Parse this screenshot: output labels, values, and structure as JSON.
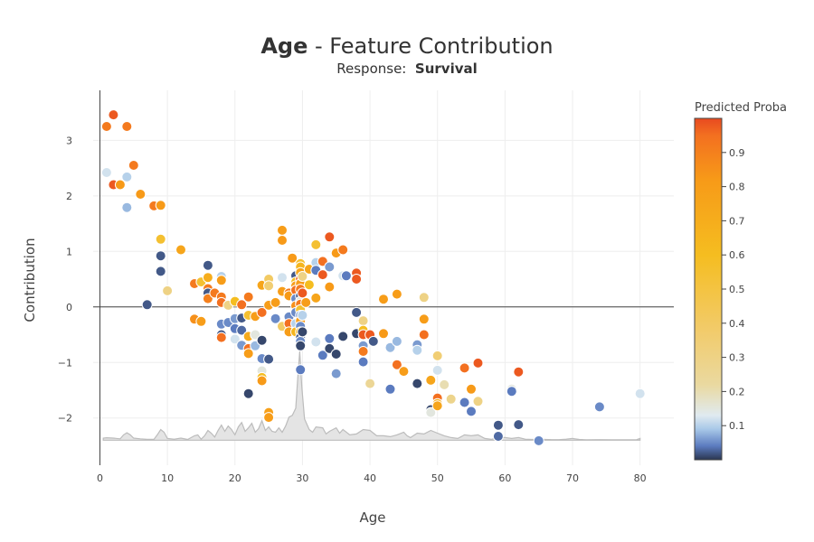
{
  "title": {
    "feature": "Age",
    "suffix": " - Feature Contribution"
  },
  "subtitle": {
    "label": "Response:",
    "value": "Survival"
  },
  "chart_data": {
    "type": "scatter",
    "xlabel": "Age",
    "ylabel": "Contribution",
    "xlim": [
      -1,
      85
    ],
    "ylim": [
      -2.85,
      3.9
    ],
    "xticks": [
      0,
      10,
      20,
      30,
      40,
      50,
      60,
      70,
      80
    ],
    "yticks": [
      -2,
      -1,
      0,
      1,
      2,
      3
    ],
    "xtick_labels": [
      "0",
      "10",
      "20",
      "30",
      "40",
      "50",
      "60",
      "70",
      "80"
    ],
    "ytick_labels": [
      "−2",
      "−1",
      "0",
      "1",
      "2",
      "3"
    ],
    "grid": true,
    "colorbar": {
      "title": "Predicted Proba",
      "range": [
        0,
        1
      ],
      "ticks": [
        0.1,
        0.2,
        0.3,
        0.4,
        0.5,
        0.6,
        0.7,
        0.8,
        0.9
      ],
      "tick_labels": [
        "0.1",
        "0.2",
        "0.3",
        "0.4",
        "0.5",
        "0.6",
        "0.7",
        "0.8",
        "0.9"
      ]
    },
    "points": [
      {
        "x": 1,
        "y": 3.25,
        "c": 0.92
      },
      {
        "x": 1,
        "y": 2.42,
        "c": 0.12
      },
      {
        "x": 2,
        "y": 3.46,
        "c": 0.98
      },
      {
        "x": 2,
        "y": 2.2,
        "c": 0.98
      },
      {
        "x": 3,
        "y": 2.2,
        "c": 0.82
      },
      {
        "x": 4,
        "y": 3.25,
        "c": 0.92
      },
      {
        "x": 4,
        "y": 2.34,
        "c": 0.1
      },
      {
        "x": 4,
        "y": 1.79,
        "c": 0.08
      },
      {
        "x": 5,
        "y": 2.55,
        "c": 0.92
      },
      {
        "x": 6,
        "y": 2.03,
        "c": 0.82
      },
      {
        "x": 8,
        "y": 1.82,
        "c": 0.92
      },
      {
        "x": 9,
        "y": 1.83,
        "c": 0.82
      },
      {
        "x": 9,
        "y": 1.22,
        "c": 0.55
      },
      {
        "x": 9,
        "y": 0.92,
        "c": 0.02
      },
      {
        "x": 9,
        "y": 0.64,
        "c": 0.02
      },
      {
        "x": 10,
        "y": 0.29,
        "c": 0.3
      },
      {
        "x": 7,
        "y": 0.04,
        "c": 0.02
      },
      {
        "x": 12,
        "y": 1.03,
        "c": 0.75
      },
      {
        "x": 14,
        "y": 0.42,
        "c": 0.92
      },
      {
        "x": 15,
        "y": 0.45,
        "c": 0.55
      },
      {
        "x": 16,
        "y": 0.53,
        "c": 0.7
      },
      {
        "x": 16,
        "y": 0.33,
        "c": 0.92
      },
      {
        "x": 16,
        "y": 0.25,
        "c": 0.02
      },
      {
        "x": 16,
        "y": 0.75,
        "c": 0.02
      },
      {
        "x": 16,
        "y": 0.15,
        "c": 0.9
      },
      {
        "x": 17,
        "y": 0.25,
        "c": 0.92
      },
      {
        "x": 18,
        "y": 0.55,
        "c": 0.1
      },
      {
        "x": 18,
        "y": 0.48,
        "c": 0.8
      },
      {
        "x": 18,
        "y": 0.18,
        "c": 0.92
      },
      {
        "x": 18,
        "y": 0.08,
        "c": 0.95
      },
      {
        "x": 14,
        "y": -0.22,
        "c": 0.85
      },
      {
        "x": 15,
        "y": -0.26,
        "c": 0.8
      },
      {
        "x": 18,
        "y": -0.31,
        "c": 0.05
      },
      {
        "x": 18,
        "y": -0.5,
        "c": 0.02
      },
      {
        "x": 18,
        "y": -0.55,
        "c": 0.95
      },
      {
        "x": 19,
        "y": 0.03,
        "c": 0.3
      },
      {
        "x": 19,
        "y": -0.28,
        "c": 0.05
      },
      {
        "x": 20,
        "y": 0.1,
        "c": 0.6
      },
      {
        "x": 20,
        "y": -0.21,
        "c": 0.06
      },
      {
        "x": 20,
        "y": -0.39,
        "c": 0.04
      },
      {
        "x": 20,
        "y": -0.58,
        "c": 0.12
      },
      {
        "x": 21,
        "y": 0.04,
        "c": 0.95
      },
      {
        "x": 21,
        "y": -0.2,
        "c": 0.02
      },
      {
        "x": 21,
        "y": -0.42,
        "c": 0.03
      },
      {
        "x": 21,
        "y": -0.69,
        "c": 0.06
      },
      {
        "x": 22,
        "y": 0.18,
        "c": 0.92
      },
      {
        "x": 22,
        "y": -0.15,
        "c": 0.55
      },
      {
        "x": 22,
        "y": -0.53,
        "c": 0.72
      },
      {
        "x": 22,
        "y": -0.75,
        "c": 0.95
      },
      {
        "x": 22,
        "y": -0.84,
        "c": 0.8
      },
      {
        "x": 22,
        "y": -1.56,
        "c": 0.01
      },
      {
        "x": 23,
        "y": -0.17,
        "c": 0.8
      },
      {
        "x": 23,
        "y": -0.5,
        "c": 0.15
      },
      {
        "x": 23,
        "y": -0.7,
        "c": 0.08
      },
      {
        "x": 24,
        "y": 0.39,
        "c": 0.75
      },
      {
        "x": 24,
        "y": -0.1,
        "c": 0.95
      },
      {
        "x": 24,
        "y": -0.6,
        "c": 0.01
      },
      {
        "x": 24,
        "y": -0.93,
        "c": 0.05
      },
      {
        "x": 24,
        "y": -1.15,
        "c": 0.15
      },
      {
        "x": 24,
        "y": -1.27,
        "c": 0.6
      },
      {
        "x": 24,
        "y": -1.33,
        "c": 0.82
      },
      {
        "x": 25,
        "y": 0.5,
        "c": 0.4
      },
      {
        "x": 25,
        "y": 0.38,
        "c": 0.35
      },
      {
        "x": 25,
        "y": 0.05,
        "c": 0.12
      },
      {
        "x": 25,
        "y": 0.03,
        "c": 0.8
      },
      {
        "x": 25,
        "y": -0.94,
        "c": 0.02
      },
      {
        "x": 25,
        "y": -1.9,
        "c": 0.78
      },
      {
        "x": 25,
        "y": -1.99,
        "c": 0.8
      },
      {
        "x": 26,
        "y": 0.08,
        "c": 0.8
      },
      {
        "x": 26,
        "y": -0.21,
        "c": 0.05
      },
      {
        "x": 27,
        "y": 1.38,
        "c": 0.8
      },
      {
        "x": 27,
        "y": 1.2,
        "c": 0.82
      },
      {
        "x": 27,
        "y": 0.53,
        "c": 0.12
      },
      {
        "x": 27,
        "y": 0.28,
        "c": 0.8
      },
      {
        "x": 27,
        "y": -0.35,
        "c": 0.4
      },
      {
        "x": 28,
        "y": 0.25,
        "c": 0.92
      },
      {
        "x": 28,
        "y": 0.2,
        "c": 0.82
      },
      {
        "x": 28,
        "y": -0.18,
        "c": 0.05
      },
      {
        "x": 28,
        "y": -0.3,
        "c": 0.95
      },
      {
        "x": 28,
        "y": -0.45,
        "c": 0.8
      },
      {
        "x": 28.5,
        "y": 0.88,
        "c": 0.82
      },
      {
        "x": 29,
        "y": 0.56,
        "c": 0.02
      },
      {
        "x": 29,
        "y": 0.45,
        "c": 0.6
      },
      {
        "x": 29,
        "y": 0.38,
        "c": 0.8
      },
      {
        "x": 29,
        "y": 0.3,
        "c": 0.95
      },
      {
        "x": 29,
        "y": 0.15,
        "c": 0.05
      },
      {
        "x": 29,
        "y": 0.02,
        "c": 0.85
      },
      {
        "x": 29,
        "y": -0.1,
        "c": 0.05
      },
      {
        "x": 29,
        "y": -0.3,
        "c": 0.1
      },
      {
        "x": 29,
        "y": -0.45,
        "c": 0.65
      },
      {
        "x": 29.7,
        "y": 0.78,
        "c": 0.55
      },
      {
        "x": 29.7,
        "y": 0.72,
        "c": 0.65
      },
      {
        "x": 29.7,
        "y": 0.62,
        "c": 0.75
      },
      {
        "x": 29.7,
        "y": 0.5,
        "c": 0.98
      },
      {
        "x": 29.7,
        "y": 0.42,
        "c": 0.8
      },
      {
        "x": 29.7,
        "y": 0.32,
        "c": 0.92
      },
      {
        "x": 29.7,
        "y": 0.2,
        "c": 0.02
      },
      {
        "x": 29.7,
        "y": 0.1,
        "c": 0.15
      },
      {
        "x": 29.7,
        "y": 0.05,
        "c": 0.92
      },
      {
        "x": 29.7,
        "y": -0.05,
        "c": 0.55
      },
      {
        "x": 29.7,
        "y": -0.15,
        "c": 0.06
      },
      {
        "x": 29.7,
        "y": -0.25,
        "c": 0.8
      },
      {
        "x": 29.7,
        "y": -0.35,
        "c": 0.05
      },
      {
        "x": 29.7,
        "y": -0.45,
        "c": 0.65
      },
      {
        "x": 29.7,
        "y": -0.55,
        "c": 0.02
      },
      {
        "x": 29.7,
        "y": -0.62,
        "c": 0.05
      },
      {
        "x": 29.7,
        "y": -0.7,
        "c": 0.01
      },
      {
        "x": 29.7,
        "y": -1.13,
        "c": 0.04
      },
      {
        "x": 30,
        "y": 0.55,
        "c": 0.3
      },
      {
        "x": 30,
        "y": 0.25,
        "c": 0.98
      },
      {
        "x": 30,
        "y": -0.15,
        "c": 0.1
      },
      {
        "x": 30,
        "y": -0.45,
        "c": 0.01
      },
      {
        "x": 30.5,
        "y": 0.08,
        "c": 0.8
      },
      {
        "x": 31,
        "y": 0.68,
        "c": 0.75
      },
      {
        "x": 31,
        "y": 0.4,
        "c": 0.6
      },
      {
        "x": 32,
        "y": 1.12,
        "c": 0.55
      },
      {
        "x": 32,
        "y": 0.8,
        "c": 0.1
      },
      {
        "x": 32,
        "y": 0.66,
        "c": 0.04
      },
      {
        "x": 32,
        "y": 0.16,
        "c": 0.75
      },
      {
        "x": 32,
        "y": -0.63,
        "c": 0.12
      },
      {
        "x": 33,
        "y": 0.82,
        "c": 0.95
      },
      {
        "x": 33,
        "y": 0.58,
        "c": 0.98
      },
      {
        "x": 33,
        "y": -0.87,
        "c": 0.04
      },
      {
        "x": 34,
        "y": 1.26,
        "c": 0.98
      },
      {
        "x": 34,
        "y": 0.72,
        "c": 0.06
      },
      {
        "x": 34,
        "y": 0.36,
        "c": 0.82
      },
      {
        "x": 34,
        "y": -0.57,
        "c": 0.04
      },
      {
        "x": 34,
        "y": -0.75,
        "c": 0.01
      },
      {
        "x": 35,
        "y": 0.97,
        "c": 0.82
      },
      {
        "x": 35,
        "y": -0.85,
        "c": 0.01
      },
      {
        "x": 35,
        "y": -1.2,
        "c": 0.06
      },
      {
        "x": 36,
        "y": 1.03,
        "c": 0.92
      },
      {
        "x": 36,
        "y": 0.56,
        "c": 0.12
      },
      {
        "x": 36,
        "y": -0.53,
        "c": 0.01
      },
      {
        "x": 36.5,
        "y": 0.56,
        "c": 0.04
      },
      {
        "x": 38,
        "y": 0.61,
        "c": 0.98
      },
      {
        "x": 38,
        "y": 0.5,
        "c": 0.98
      },
      {
        "x": 38,
        "y": -0.1,
        "c": 0.02
      },
      {
        "x": 38,
        "y": -0.48,
        "c": 0.01
      },
      {
        "x": 39,
        "y": -0.25,
        "c": 0.3
      },
      {
        "x": 39,
        "y": -0.42,
        "c": 0.6
      },
      {
        "x": 39,
        "y": -0.5,
        "c": 0.98
      },
      {
        "x": 39,
        "y": -0.7,
        "c": 0.06
      },
      {
        "x": 39,
        "y": -0.8,
        "c": 0.92
      },
      {
        "x": 39,
        "y": -0.99,
        "c": 0.04
      },
      {
        "x": 40,
        "y": -0.5,
        "c": 0.98
      },
      {
        "x": 40,
        "y": -1.38,
        "c": 0.25
      },
      {
        "x": 40.5,
        "y": -0.62,
        "c": 0.02
      },
      {
        "x": 42,
        "y": 0.14,
        "c": 0.8
      },
      {
        "x": 42,
        "y": -0.48,
        "c": 0.82
      },
      {
        "x": 43,
        "y": -0.73,
        "c": 0.08
      },
      {
        "x": 43,
        "y": -1.48,
        "c": 0.04
      },
      {
        "x": 44,
        "y": 0.23,
        "c": 0.8
      },
      {
        "x": 44,
        "y": -0.62,
        "c": 0.08
      },
      {
        "x": 44,
        "y": -1.04,
        "c": 0.95
      },
      {
        "x": 45,
        "y": -1.16,
        "c": 0.8
      },
      {
        "x": 47,
        "y": -0.68,
        "c": 0.06
      },
      {
        "x": 47,
        "y": -0.78,
        "c": 0.1
      },
      {
        "x": 47,
        "y": -1.38,
        "c": 0.01
      },
      {
        "x": 48,
        "y": 0.17,
        "c": 0.3
      },
      {
        "x": 48,
        "y": -0.22,
        "c": 0.8
      },
      {
        "x": 48,
        "y": -0.5,
        "c": 0.95
      },
      {
        "x": 49,
        "y": -1.32,
        "c": 0.75
      },
      {
        "x": 49,
        "y": -1.85,
        "c": 0.01
      },
      {
        "x": 49,
        "y": -1.9,
        "c": 0.15
      },
      {
        "x": 50,
        "y": -0.88,
        "c": 0.35
      },
      {
        "x": 50,
        "y": -1.14,
        "c": 0.12
      },
      {
        "x": 50,
        "y": -1.64,
        "c": 0.95
      },
      {
        "x": 50,
        "y": -1.74,
        "c": 0.7
      },
      {
        "x": 50,
        "y": -1.78,
        "c": 0.75
      },
      {
        "x": 51,
        "y": -1.4,
        "c": 0.2
      },
      {
        "x": 52,
        "y": -1.66,
        "c": 0.28
      },
      {
        "x": 54,
        "y": -1.1,
        "c": 0.95
      },
      {
        "x": 54,
        "y": -1.72,
        "c": 0.04
      },
      {
        "x": 55,
        "y": -1.48,
        "c": 0.82
      },
      {
        "x": 55,
        "y": -1.88,
        "c": 0.04
      },
      {
        "x": 56,
        "y": -1.01,
        "c": 0.98
      },
      {
        "x": 56,
        "y": -1.7,
        "c": 0.3
      },
      {
        "x": 59,
        "y": -2.13,
        "c": 0.02
      },
      {
        "x": 59,
        "y": -2.33,
        "c": 0.03
      },
      {
        "x": 61,
        "y": -1.48,
        "c": 0.15
      },
      {
        "x": 61,
        "y": -1.52,
        "c": 0.04
      },
      {
        "x": 62,
        "y": -1.17,
        "c": 0.98
      },
      {
        "x": 62,
        "y": -2.12,
        "c": 0.02
      },
      {
        "x": 65,
        "y": -2.41,
        "c": 0.05
      },
      {
        "x": 74,
        "y": -1.8,
        "c": 0.05
      },
      {
        "x": 80,
        "y": -1.56,
        "c": 0.12
      }
    ],
    "density": [
      [
        0.5,
        0.12
      ],
      [
        1,
        0.14
      ],
      [
        2,
        0.12
      ],
      [
        3,
        0.08
      ],
      [
        3.5,
        0.3
      ],
      [
        4,
        0.42
      ],
      [
        4.5,
        0.3
      ],
      [
        5,
        0.12
      ],
      [
        6,
        0.08
      ],
      [
        7,
        0.05
      ],
      [
        8,
        0.05
      ],
      [
        8.5,
        0.3
      ],
      [
        9,
        0.6
      ],
      [
        9.5,
        0.45
      ],
      [
        10,
        0.1
      ],
      [
        11,
        0.06
      ],
      [
        12,
        0.12
      ],
      [
        13,
        0.04
      ],
      [
        14,
        0.25
      ],
      [
        14.5,
        0.3
      ],
      [
        15,
        0.06
      ],
      [
        15.5,
        0.25
      ],
      [
        16,
        0.55
      ],
      [
        16.5,
        0.4
      ],
      [
        17,
        0.18
      ],
      [
        17.5,
        0.55
      ],
      [
        18,
        0.85
      ],
      [
        18.5,
        0.5
      ],
      [
        19,
        0.8
      ],
      [
        19.5,
        0.6
      ],
      [
        20,
        0.3
      ],
      [
        20.5,
        0.75
      ],
      [
        21,
        1.0
      ],
      [
        21.5,
        0.5
      ],
      [
        22,
        0.7
      ],
      [
        22.5,
        0.95
      ],
      [
        23,
        0.45
      ],
      [
        23.5,
        0.65
      ],
      [
        24,
        1.1
      ],
      [
        24.5,
        0.55
      ],
      [
        25,
        0.75
      ],
      [
        25.5,
        0.5
      ],
      [
        26,
        0.45
      ],
      [
        26.5,
        0.7
      ],
      [
        27,
        0.45
      ],
      [
        27.5,
        0.8
      ],
      [
        28,
        1.3
      ],
      [
        28.5,
        1.4
      ],
      [
        29,
        1.8
      ],
      [
        29.3,
        3.5
      ],
      [
        29.6,
        5.0
      ],
      [
        29.9,
        3.0
      ],
      [
        30.3,
        1.2
      ],
      [
        31,
        0.6
      ],
      [
        31.5,
        0.45
      ],
      [
        32,
        0.75
      ],
      [
        33,
        0.7
      ],
      [
        33.5,
        0.35
      ],
      [
        34,
        0.5
      ],
      [
        35,
        0.7
      ],
      [
        35.5,
        0.4
      ],
      [
        36,
        0.6
      ],
      [
        37,
        0.3
      ],
      [
        38,
        0.35
      ],
      [
        39,
        0.6
      ],
      [
        40,
        0.55
      ],
      [
        41,
        0.25
      ],
      [
        42,
        0.25
      ],
      [
        43,
        0.2
      ],
      [
        44,
        0.3
      ],
      [
        45,
        0.45
      ],
      [
        45.5,
        0.25
      ],
      [
        46,
        0.15
      ],
      [
        47,
        0.4
      ],
      [
        48,
        0.35
      ],
      [
        49,
        0.55
      ],
      [
        50,
        0.4
      ],
      [
        51,
        0.25
      ],
      [
        52,
        0.15
      ],
      [
        53,
        0.1
      ],
      [
        54,
        0.3
      ],
      [
        55,
        0.25
      ],
      [
        56,
        0.3
      ],
      [
        57,
        0.1
      ],
      [
        58,
        0.05
      ],
      [
        59,
        0.15
      ],
      [
        60,
        0.15
      ],
      [
        61,
        0.1
      ],
      [
        62,
        0.15
      ],
      [
        63,
        0.06
      ],
      [
        64,
        0.04
      ],
      [
        65,
        0.06
      ],
      [
        66,
        0.04
      ],
      [
        67,
        0.03
      ],
      [
        68,
        0.03
      ],
      [
        69,
        0.06
      ],
      [
        70,
        0.1
      ],
      [
        71,
        0.04
      ],
      [
        72,
        0.02
      ],
      [
        74,
        0.03
      ],
      [
        76,
        0.02
      ],
      [
        78,
        0.02
      ],
      [
        79.5,
        0.03
      ],
      [
        80,
        0.1
      ]
    ]
  }
}
